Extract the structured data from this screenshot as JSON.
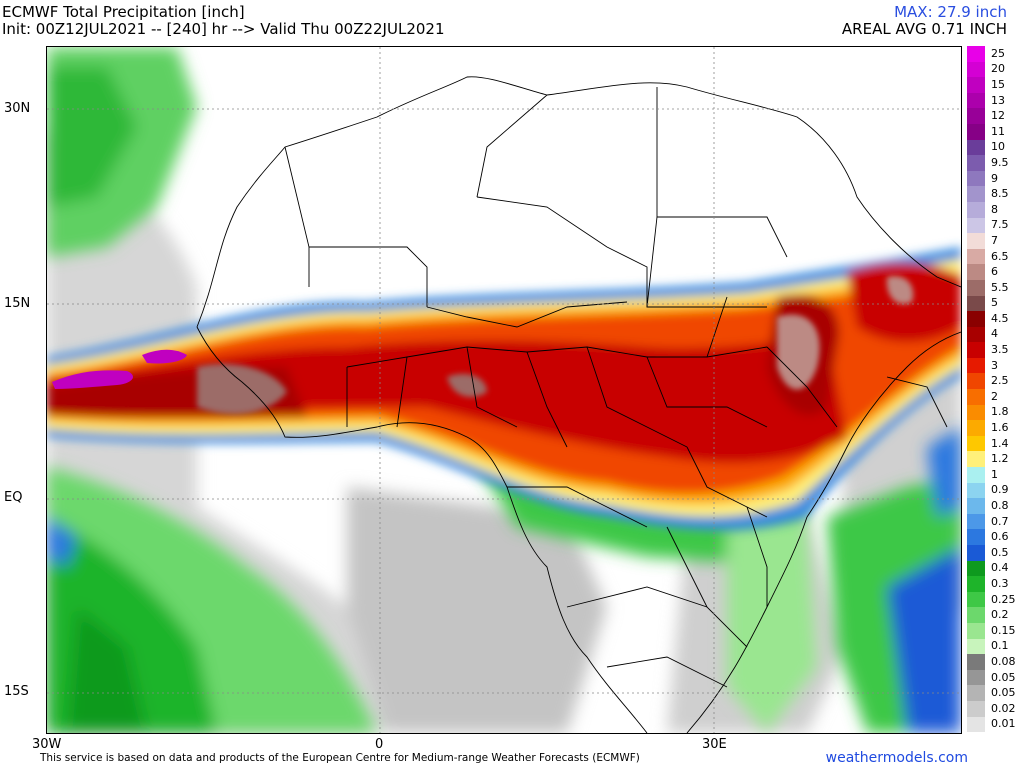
{
  "header": {
    "title": "ECMWF Total Precipitation [inch]",
    "init": "Init: 00Z12JUL2021 -- [240] hr --> Valid Thu 00Z22JUL2021",
    "max": "MAX: 27.9 inch",
    "areal": "AREAL AVG 0.71 INCH"
  },
  "axes": {
    "lon_labels": [
      "30W",
      "0",
      "30E"
    ],
    "lat_labels": [
      "30N",
      "15N",
      "EQ",
      "15S"
    ]
  },
  "colorbar": {
    "levels": [
      {
        "label": "25",
        "color": "#e800e8"
      },
      {
        "label": "20",
        "color": "#d400d4"
      },
      {
        "label": "15",
        "color": "#c000c0"
      },
      {
        "label": "13",
        "color": "#ac00ac"
      },
      {
        "label": "12",
        "color": "#980098"
      },
      {
        "label": "11",
        "color": "#860086"
      },
      {
        "label": "10",
        "color": "#6a3d9a"
      },
      {
        "label": "9.5",
        "color": "#7c5cae"
      },
      {
        "label": "9",
        "color": "#8e78be"
      },
      {
        "label": "8.5",
        "color": "#a294cc"
      },
      {
        "label": "8",
        "color": "#b6acda"
      },
      {
        "label": "7.5",
        "color": "#ccc6e6"
      },
      {
        "label": "7",
        "color": "#f2dcd8"
      },
      {
        "label": "6.5",
        "color": "#d8aaa4"
      },
      {
        "label": "6",
        "color": "#bc8a84"
      },
      {
        "label": "5.5",
        "color": "#9c6c68"
      },
      {
        "label": "5",
        "color": "#7a4a4a"
      },
      {
        "label": "4.5",
        "color": "#8a0000"
      },
      {
        "label": "4",
        "color": "#a80000"
      },
      {
        "label": "3.5",
        "color": "#c80000"
      },
      {
        "label": "3",
        "color": "#e61a00"
      },
      {
        "label": "2.5",
        "color": "#f04600"
      },
      {
        "label": "2",
        "color": "#f86e00"
      },
      {
        "label": "1.8",
        "color": "#fa8c00"
      },
      {
        "label": "1.6",
        "color": "#fcaa00"
      },
      {
        "label": "1.4",
        "color": "#fec800"
      },
      {
        "label": "1.2",
        "color": "#fff07a"
      },
      {
        "label": "1",
        "color": "#aaf0f0"
      },
      {
        "label": "0.9",
        "color": "#8cd4f0"
      },
      {
        "label": "0.8",
        "color": "#6cb8ec"
      },
      {
        "label": "0.7",
        "color": "#4c98e8"
      },
      {
        "label": "0.6",
        "color": "#2c78e0"
      },
      {
        "label": "0.5",
        "color": "#1a5ad6"
      },
      {
        "label": "0.4",
        "color": "#0e9a1e"
      },
      {
        "label": "0.3",
        "color": "#1eb42a"
      },
      {
        "label": "0.25",
        "color": "#3ec846"
      },
      {
        "label": "0.2",
        "color": "#6cd86c"
      },
      {
        "label": "0.15",
        "color": "#9ae690"
      },
      {
        "label": "0.1",
        "color": "#c8f4bc"
      },
      {
        "label": "0.08",
        "color": "#7a7a7a"
      },
      {
        "label": "0.05",
        "color": "#969696"
      },
      {
        "label": "0.05",
        "color": "#b4b4b4"
      },
      {
        "label": "0.02",
        "color": "#cccccc"
      },
      {
        "label": "0.01",
        "color": "#e4e4e4"
      }
    ]
  },
  "footer": {
    "disclaimer": "This service is based on data and products of the European Centre for Medium-range Weather Forecasts (ECMWF)",
    "brand": "weathermodels.com"
  }
}
